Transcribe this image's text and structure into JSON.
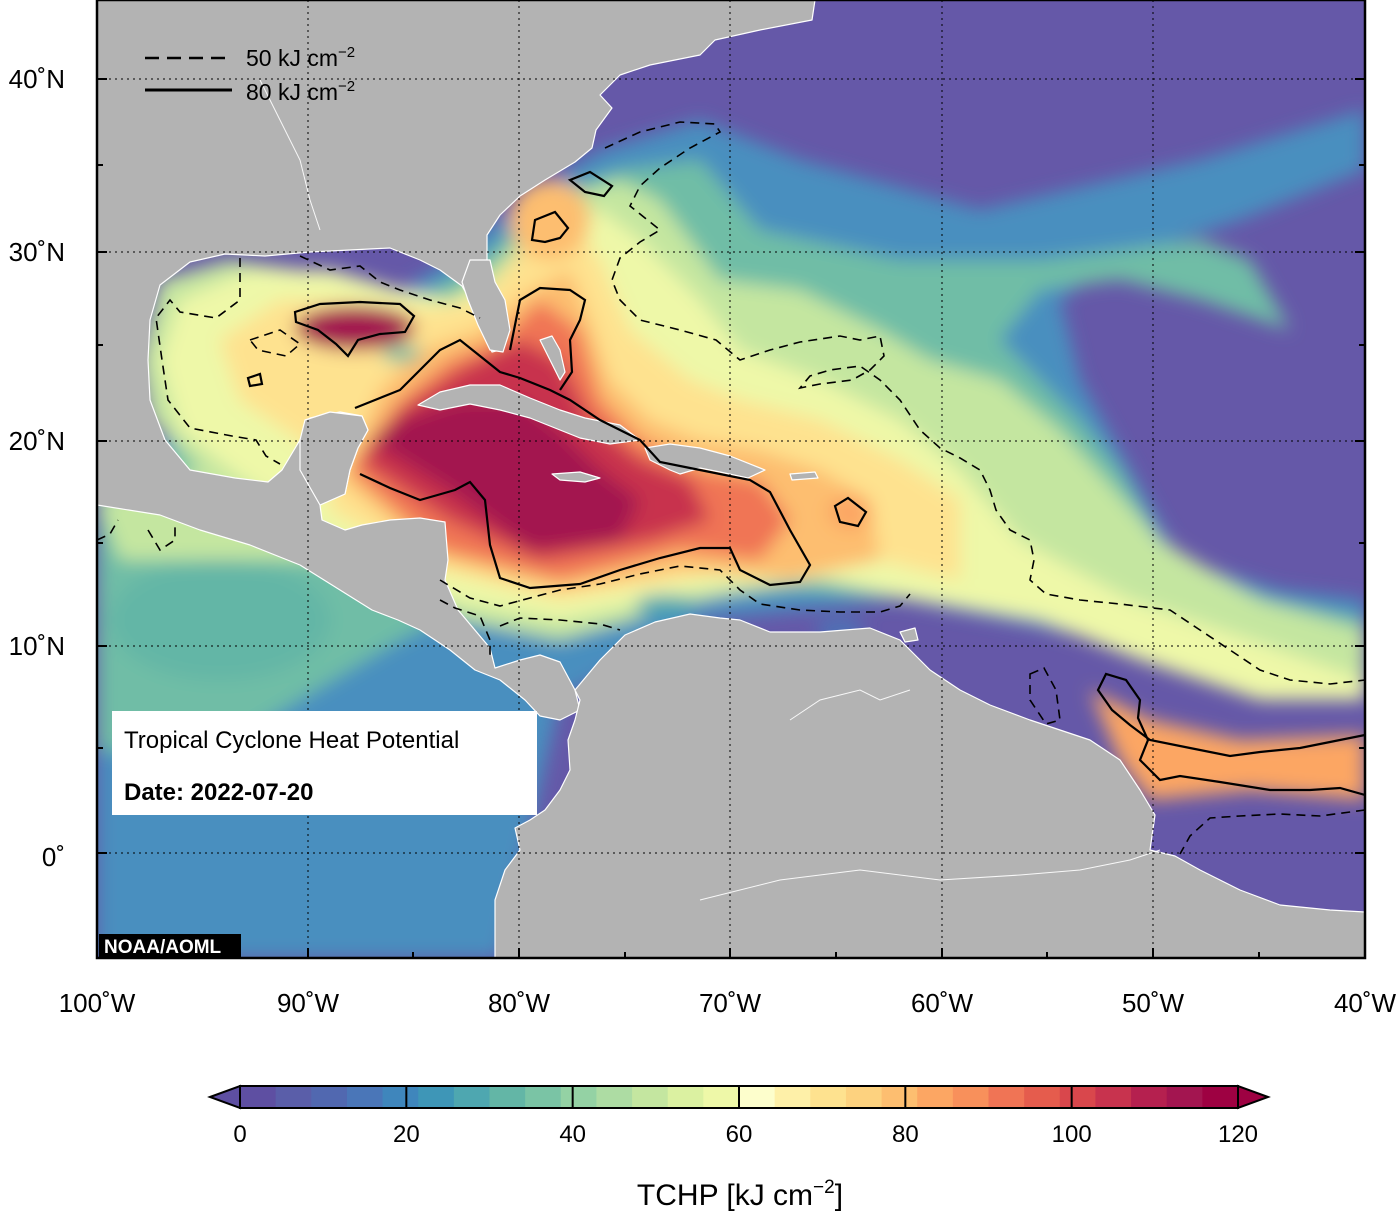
{
  "map": {
    "title": "Tropical Cyclone Heat Potential",
    "date_label": "Date: 2022-07-20",
    "credit": "NOAA/AOML",
    "x_ticks": [
      "100˚W",
      "90˚W",
      "80˚W",
      "70˚W",
      "60˚W",
      "50˚W",
      "40˚W"
    ],
    "y_ticks": [
      "40˚N",
      "30˚N",
      "20˚N",
      "10˚N",
      "0˚"
    ],
    "legend": [
      {
        "style": "dashed",
        "value": "50 kJ cm",
        "sup": "−2"
      },
      {
        "style": "solid",
        "value": "80 kJ cm",
        "sup": "−2"
      }
    ],
    "colors": {
      "land": "#b3b3b3",
      "coast": "#ffffff",
      "ocean_low": "#6558a8",
      "ocean_high": "#a0144b"
    }
  },
  "colorbar": {
    "title": "TCHP [kJ cm",
    "title_sup": "−2",
    "title_close": "]",
    "min": 0,
    "max": 120,
    "ticks": [
      "0",
      "20",
      "40",
      "60",
      "80",
      "100",
      "120"
    ],
    "colors": [
      "#5e4fa2",
      "#5a5ea9",
      "#5168b0",
      "#4a76b8",
      "#3f86bc",
      "#3e96b7",
      "#4ea7b0",
      "#63b6a6",
      "#7ac4a5",
      "#94d2a4",
      "#addca3",
      "#c4e6a0",
      "#dbf1a1",
      "#eef8a8",
      "#fdfecc",
      "#fef0a8",
      "#fee28f",
      "#fdd27f",
      "#fdbe70",
      "#fca663",
      "#f8905b",
      "#f07455",
      "#e55c4d",
      "#d9474c",
      "#c8334e",
      "#b5204f",
      "#a31550",
      "#9e0142"
    ]
  }
}
